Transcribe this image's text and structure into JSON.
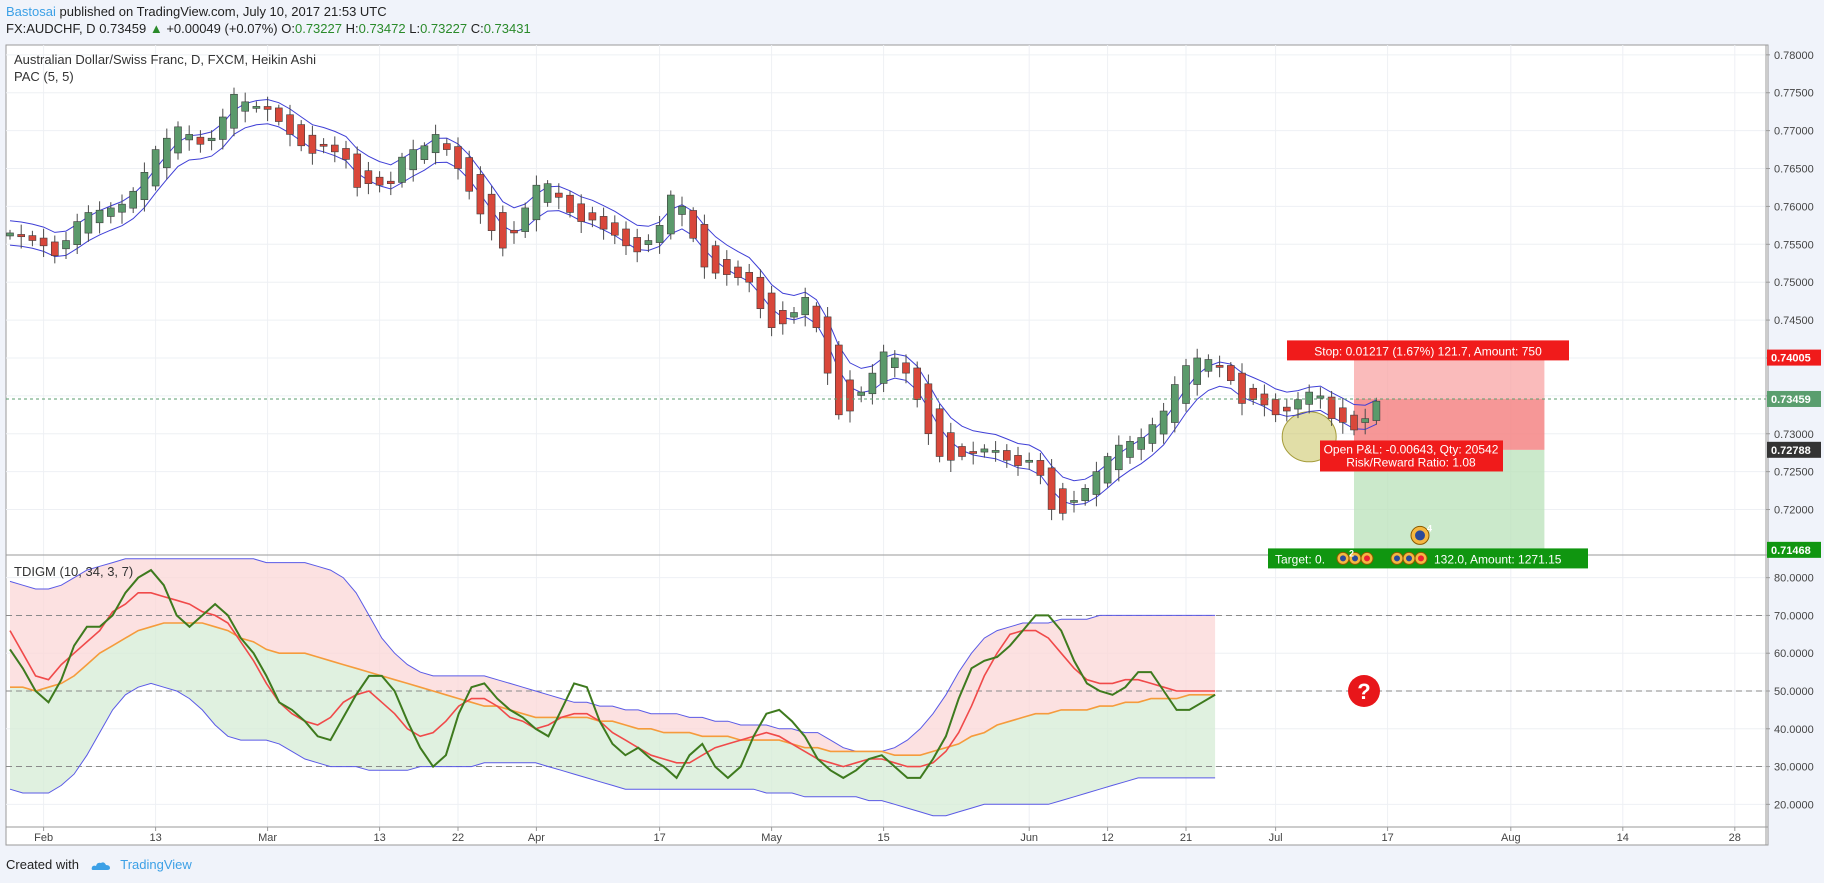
{
  "header": {
    "author": "Bastosai",
    "published": "published on TradingView.com, July 10, 2017 21:53 UTC",
    "symbol": "FX:AUDCHF, D",
    "last": "0.73459",
    "change_arrow": "▲",
    "change": "+0.00049 (+0.07%)",
    "o_label": "O:",
    "o": "0.73227",
    "h_label": "H:",
    "h": "0.73472",
    "l_label": "L:",
    "l": "0.73227",
    "c_label": "C:",
    "c": "0.73431"
  },
  "footer": {
    "created_with": "Created with",
    "brand": "TradingView"
  },
  "colors": {
    "up": "#5b9a6b",
    "down": "#d9473a",
    "pac": "#3f3fd6",
    "stop_zone": "#f8a4a4",
    "target_zone": "#b9e2b9",
    "stop_label": "#f01b1b",
    "target_label": "#109610",
    "tdi_green": "#3e7a1e",
    "tdi_red": "#f04a4a",
    "tdi_orange": "#f59b3c",
    "tdi_band": "#5a5ae6"
  },
  "chart_data": [
    {
      "type": "candlestick",
      "title": "Australian Dollar/Swiss Franc, D, FXCM, Heikin Ashi",
      "indicator": "PAC (5, 5)",
      "ylim": [
        0.714,
        0.7813
      ],
      "y_ticks": [
        "0.78000",
        "0.77500",
        "0.77000",
        "0.76500",
        "0.76000",
        "0.75500",
        "0.75000",
        "0.74500",
        "0.74000",
        "0.73500",
        "0.73000",
        "0.72500",
        "0.72000"
      ],
      "x_ticks": [
        {
          "label": "Feb",
          "i": 3
        },
        {
          "label": "13",
          "i": 13
        },
        {
          "label": "Mar",
          "i": 23
        },
        {
          "label": "13",
          "i": 33
        },
        {
          "label": "22",
          "i": 40
        },
        {
          "label": "Apr",
          "i": 47
        },
        {
          "label": "17",
          "i": 58
        },
        {
          "label": "May",
          "i": 68
        },
        {
          "label": "15",
          "i": 78
        },
        {
          "label": "Jun",
          "i": 91
        },
        {
          "label": "12",
          "i": 98
        },
        {
          "label": "21",
          "i": 105
        },
        {
          "label": "Jul",
          "i": 113
        },
        {
          "label": "17",
          "i": 123
        },
        {
          "label": "Aug",
          "i": 134
        },
        {
          "label": "14",
          "i": 144
        },
        {
          "label": "28",
          "i": 154
        }
      ],
      "closes": [
        0.7565,
        0.756,
        0.7555,
        0.7548,
        0.7535,
        0.7555,
        0.758,
        0.7592,
        0.7595,
        0.7598,
        0.7603,
        0.762,
        0.7645,
        0.7675,
        0.769,
        0.7705,
        0.7695,
        0.7682,
        0.769,
        0.7718,
        0.7748,
        0.7738,
        0.7732,
        0.7728,
        0.7712,
        0.7695,
        0.768,
        0.767,
        0.768,
        0.7672,
        0.7662,
        0.7625,
        0.763,
        0.7628,
        0.763,
        0.7665,
        0.7675,
        0.768,
        0.7695,
        0.7675,
        0.765,
        0.762,
        0.759,
        0.7568,
        0.7545,
        0.7565,
        0.7598,
        0.7628,
        0.763,
        0.7612,
        0.7592,
        0.758,
        0.7582,
        0.757,
        0.7562,
        0.7548,
        0.754,
        0.7555,
        0.7575,
        0.7615,
        0.76,
        0.7558,
        0.752,
        0.7512,
        0.751,
        0.7506,
        0.75,
        0.7465,
        0.744,
        0.7445,
        0.746,
        0.748,
        0.744,
        0.738,
        0.7325,
        0.733,
        0.7355,
        0.738,
        0.7408,
        0.74,
        0.738,
        0.7345,
        0.73,
        0.727,
        0.7265,
        0.727,
        0.7275,
        0.728,
        0.7278,
        0.7265,
        0.7258,
        0.7265,
        0.7245,
        0.72,
        0.7195,
        0.7212,
        0.7228,
        0.725,
        0.727,
        0.7285,
        0.729,
        0.7295,
        0.7312,
        0.733,
        0.7365,
        0.739,
        0.74,
        0.7398,
        0.739,
        0.737,
        0.734,
        0.7345,
        0.7338,
        0.7325,
        0.733,
        0.7345,
        0.7355,
        0.735,
        0.732,
        0.7315,
        0.7305,
        0.732,
        0.7343
      ],
      "series": [
        {
          "name": "PAC (5, 5)"
        }
      ],
      "price_labels": [
        {
          "label": "0.74005",
          "value": 0.74005,
          "color": "#f01b1b"
        },
        {
          "label": "0.73459",
          "value": 0.73459,
          "color": "#5a9e6e"
        },
        {
          "label": "0.72788",
          "value": 0.72788,
          "color": "#333333"
        },
        {
          "label": "0.71468",
          "value": 0.71468,
          "color": "#109610"
        }
      ],
      "position": {
        "entry": 0.72788,
        "stop": 0.74005,
        "target": 0.71468,
        "start_i": 120,
        "end_i": 137,
        "stop_text": "Stop: 0.01217 (1.67%) 121.7, Amount: 750",
        "pnl_text": "Open P&L: -0.00643, Qty: 20542",
        "rr_text": "Risk/Reward Ratio: 1.08",
        "target_left": "Target: 0.",
        "target_right": "132.0, Amount: 1271.15",
        "event_counts": [
          "2",
          "4"
        ]
      }
    },
    {
      "type": "line",
      "title": "TDIGM (10, 34, 3, 7)",
      "ylim": [
        14,
        86
      ],
      "y_ticks": [
        "80.0000",
        "70.0000",
        "60.0000",
        "50.0000",
        "40.0000",
        "30.0000",
        "20.0000"
      ],
      "levels": [
        70,
        50,
        30
      ],
      "series": [
        {
          "name": "green",
          "values": [
            61,
            56,
            50,
            47,
            53,
            62,
            67,
            67,
            70,
            76,
            80,
            82,
            78,
            70,
            67,
            70,
            73,
            70,
            64,
            60,
            54,
            47,
            45,
            42,
            38,
            37,
            43,
            49,
            54,
            54,
            50,
            42,
            35,
            30,
            33,
            44,
            51,
            52,
            48,
            45,
            43,
            40,
            38,
            45,
            52,
            51,
            42,
            36,
            33,
            35,
            32,
            30,
            27,
            33,
            36,
            30,
            27,
            30,
            38,
            44,
            45,
            42,
            38,
            32,
            29,
            27,
            29,
            32,
            33,
            30,
            27,
            27,
            32,
            38,
            48,
            56,
            58,
            59,
            62,
            66,
            70,
            70,
            66,
            58,
            52,
            50,
            49,
            51,
            55,
            55,
            50,
            45,
            45,
            47,
            49
          ]
        },
        {
          "name": "red",
          "values": [
            66,
            60,
            54,
            53,
            57,
            60,
            63,
            66,
            71,
            73,
            76,
            76,
            75,
            74,
            73,
            71,
            70,
            68,
            63,
            58,
            52,
            47,
            44,
            42,
            41,
            43,
            47,
            49,
            50,
            47,
            44,
            40,
            38,
            39,
            42,
            46,
            48,
            48,
            46,
            43,
            42,
            40,
            41,
            43,
            44,
            44,
            42,
            39,
            37,
            35,
            33,
            32,
            31,
            31,
            33,
            35,
            36,
            37,
            38,
            39,
            38,
            36,
            34,
            32,
            31,
            30,
            31,
            32,
            32,
            31,
            30,
            30,
            31,
            34,
            39,
            46,
            54,
            60,
            65,
            66,
            66,
            64,
            60,
            56,
            53,
            52,
            52,
            53,
            53,
            52,
            51,
            50,
            50,
            50,
            50
          ]
        },
        {
          "name": "orange",
          "values": [
            51,
            51,
            50,
            51,
            52,
            54,
            57,
            60,
            62,
            64,
            66,
            67,
            68,
            68,
            68,
            68,
            67,
            66,
            64,
            63,
            61,
            60,
            60,
            60,
            59,
            58,
            57,
            56,
            55,
            54,
            53,
            52,
            51,
            50,
            49,
            48,
            47,
            46,
            46,
            45,
            44,
            43,
            43,
            43,
            43,
            43,
            42,
            42,
            41,
            40,
            40,
            39,
            39,
            39,
            38,
            38,
            38,
            37,
            37,
            37,
            37,
            36,
            35,
            35,
            34,
            34,
            34,
            34,
            34,
            33,
            33,
            33,
            34,
            35,
            36,
            38,
            39,
            41,
            42,
            43,
            44,
            44,
            45,
            45,
            45,
            46,
            46,
            47,
            47,
            48,
            48,
            48,
            49,
            49,
            49
          ]
        },
        {
          "name": "upper band",
          "values": [
            79,
            78,
            77,
            77,
            78,
            80,
            82,
            83,
            84,
            85,
            85,
            85,
            85,
            85,
            85,
            85,
            85,
            85,
            85,
            85,
            84,
            84,
            84,
            84,
            83,
            82,
            80,
            76,
            70,
            64,
            60,
            57,
            55,
            54,
            54,
            54,
            54,
            54,
            53,
            52,
            51,
            50,
            49,
            48,
            47,
            47,
            46,
            46,
            45,
            45,
            44,
            44,
            44,
            43,
            43,
            42,
            42,
            41,
            41,
            41,
            40,
            40,
            39,
            39,
            37,
            35,
            34,
            34,
            34,
            35,
            37,
            40,
            44,
            49,
            55,
            60,
            64,
            66,
            67,
            68,
            68,
            68,
            69,
            69,
            69,
            70,
            70,
            70,
            70,
            70,
            70,
            70,
            70,
            70,
            70
          ]
        },
        {
          "name": "lower band",
          "values": [
            24,
            23,
            23,
            23,
            25,
            28,
            33,
            39,
            45,
            49,
            51,
            52,
            51,
            50,
            48,
            45,
            41,
            38,
            37,
            37,
            37,
            36,
            34,
            32,
            31,
            30,
            30,
            30,
            29,
            29,
            29,
            29,
            30,
            30,
            30,
            30,
            30,
            31,
            31,
            31,
            31,
            31,
            30,
            29,
            28,
            27,
            26,
            25,
            24,
            24,
            24,
            24,
            24,
            24,
            24,
            24,
            24,
            24,
            24,
            23,
            23,
            23,
            22,
            22,
            22,
            22,
            22,
            21,
            21,
            20,
            19,
            18,
            17,
            17,
            18,
            19,
            20,
            20,
            20,
            20,
            20,
            20,
            21,
            22,
            23,
            24,
            25,
            26,
            27,
            27,
            27,
            27,
            27,
            27,
            27
          ]
        }
      ],
      "question_mark": "?"
    }
  ]
}
